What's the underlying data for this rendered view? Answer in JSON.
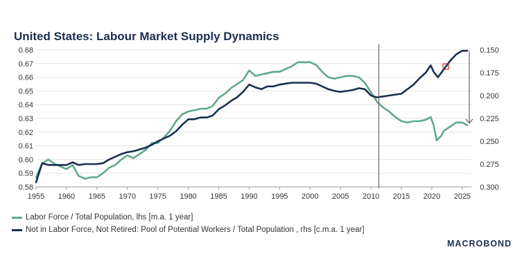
{
  "chart_data": {
    "type": "line",
    "title": "United States: Labour Market Supply Dynamics",
    "x_ticks": [
      1955,
      1960,
      1965,
      1970,
      1975,
      1980,
      1985,
      1990,
      1995,
      2000,
      2005,
      2010,
      2015,
      2020,
      2025
    ],
    "xlim": [
      1955,
      2026.5
    ],
    "y_left": {
      "ticks": [
        "0.68",
        "0.67",
        "0.66",
        "0.65",
        "0.64",
        "0.63",
        "0.62",
        "0.61",
        "0.60",
        "0.59",
        "0.58"
      ],
      "ylim": [
        0.58,
        0.68
      ]
    },
    "y_right": {
      "ticks": [
        "0.150",
        "0.175",
        "0.200",
        "0.225",
        "0.250",
        "0.275",
        "0.300"
      ],
      "ylim": [
        0.3,
        0.15
      ],
      "inverted": true
    },
    "vline_x": 2011.3,
    "series": [
      {
        "name": "Labor Force / Total Population, lhs [m.a. 1 year]",
        "axis": "left",
        "color": "#5fa98a",
        "x": [
          1955,
          1956,
          1957,
          1958,
          1959,
          1960,
          1961,
          1962,
          1963,
          1964,
          1965,
          1966,
          1967,
          1968,
          1969,
          1970,
          1971,
          1972,
          1973,
          1974,
          1975,
          1976,
          1977,
          1978,
          1979,
          1980,
          1981,
          1982,
          1983,
          1984,
          1985,
          1986,
          1987,
          1988,
          1989,
          1990,
          1991,
          1992,
          1993,
          1994,
          1995,
          1996,
          1997,
          1998,
          1999,
          2000,
          2001,
          2002,
          2003,
          2004,
          2005,
          2006,
          2007,
          2008,
          2009,
          2010,
          2011,
          2012,
          2013,
          2014,
          2015,
          2016,
          2017,
          2018,
          2019,
          2019.8,
          2020.3,
          2020.8,
          2021.5,
          2022,
          2023,
          2024,
          2025,
          2025.8
        ],
        "values": [
          0.587,
          0.597,
          0.6,
          0.597,
          0.595,
          0.593,
          0.596,
          0.588,
          0.586,
          0.587,
          0.587,
          0.59,
          0.594,
          0.596,
          0.6,
          0.603,
          0.601,
          0.604,
          0.607,
          0.612,
          0.612,
          0.616,
          0.621,
          0.628,
          0.633,
          0.635,
          0.636,
          0.637,
          0.637,
          0.639,
          0.645,
          0.648,
          0.652,
          0.655,
          0.658,
          0.665,
          0.661,
          0.662,
          0.663,
          0.664,
          0.664,
          0.666,
          0.668,
          0.671,
          0.671,
          0.671,
          0.669,
          0.664,
          0.66,
          0.659,
          0.66,
          0.661,
          0.661,
          0.66,
          0.656,
          0.649,
          0.642,
          0.638,
          0.635,
          0.631,
          0.628,
          0.627,
          0.628,
          0.628,
          0.629,
          0.631,
          0.625,
          0.614,
          0.617,
          0.621,
          0.624,
          0.627,
          0.627,
          0.625
        ]
      },
      {
        "name": "Not in Labor Force, Not Retired: Pool of Potential Workers / Total Population , rhs [c.m.a. 1 year]",
        "axis": "right",
        "color": "#1b2f4f",
        "x": [
          1955,
          1956,
          1957,
          1958,
          1959,
          1960,
          1961,
          1962,
          1963,
          1964,
          1965,
          1966,
          1967,
          1968,
          1969,
          1970,
          1971,
          1972,
          1973,
          1974,
          1975,
          1976,
          1977,
          1978,
          1979,
          1980,
          1981,
          1982,
          1983,
          1984,
          1985,
          1986,
          1987,
          1988,
          1989,
          1990,
          1991,
          1992,
          1993,
          1994,
          1995,
          1996,
          1997,
          1998,
          1999,
          2000,
          2001,
          2002,
          2003,
          2004,
          2005,
          2006,
          2007,
          2008,
          2009,
          2010,
          2011,
          2012,
          2013,
          2014,
          2015,
          2016,
          2017,
          2018,
          2019,
          2019.8,
          2020.3,
          2021,
          2022,
          2023,
          2024,
          2025,
          2025.8
        ],
        "values": [
          0.295,
          0.274,
          0.276,
          0.276,
          0.276,
          0.276,
          0.273,
          0.276,
          0.275,
          0.275,
          0.275,
          0.274,
          0.27,
          0.267,
          0.264,
          0.262,
          0.261,
          0.259,
          0.257,
          0.254,
          0.25,
          0.247,
          0.244,
          0.239,
          0.232,
          0.226,
          0.226,
          0.224,
          0.224,
          0.222,
          0.215,
          0.211,
          0.206,
          0.202,
          0.196,
          0.188,
          0.191,
          0.193,
          0.19,
          0.19,
          0.188,
          0.187,
          0.186,
          0.186,
          0.186,
          0.186,
          0.187,
          0.19,
          0.193,
          0.195,
          0.196,
          0.195,
          0.194,
          0.192,
          0.193,
          0.2,
          0.202,
          0.201,
          0.2,
          0.199,
          0.198,
          0.193,
          0.188,
          0.181,
          0.175,
          0.167,
          0.174,
          0.18,
          0.171,
          0.162,
          0.155,
          0.151,
          0.151
        ]
      }
    ],
    "annotation": {
      "marker_x": 2022.3,
      "arrow": "down"
    },
    "legend": "bottom-left",
    "grid": true
  },
  "legend": {
    "item1": "Labor Force / Total Population, lhs [m.a. 1 year]",
    "item2": "Not in Labor Force, Not Retired: Pool of Potential Workers / Total Population , rhs [c.m.a. 1 year]"
  },
  "brand": {
    "text": "MACROBOND"
  },
  "colors": {
    "green": "#5fa98a",
    "navy": "#1b2f4f",
    "marker": "#c0392b"
  }
}
